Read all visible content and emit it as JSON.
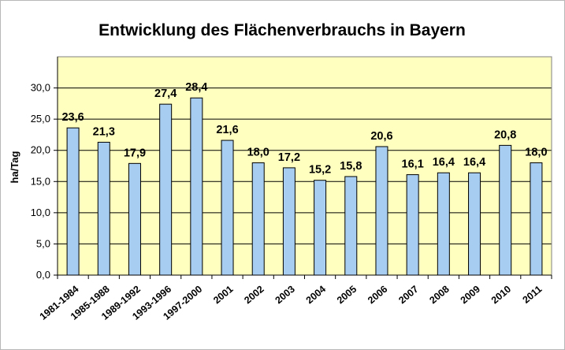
{
  "chart_data": {
    "type": "bar",
    "title": "Entwicklung des Flächenverbrauchs in Bayern",
    "ylabel": "ha/Tag",
    "xlabel": "",
    "categories": [
      "1981-1984",
      "1985-1988",
      "1989-1992",
      "1993-1996",
      "1997-2000",
      "2001",
      "2002",
      "2003",
      "2004",
      "2005",
      "2006",
      "2007",
      "2008",
      "2009",
      "2010",
      "2011"
    ],
    "values": [
      23.6,
      21.3,
      17.9,
      27.4,
      28.4,
      21.6,
      18.0,
      17.2,
      15.2,
      15.8,
      20.6,
      16.1,
      16.4,
      16.4,
      20.8,
      18.0
    ],
    "value_labels": [
      "23,6",
      "21,3",
      "17,9",
      "27,4",
      "28,4",
      "21,6",
      "18,0",
      "17,2",
      "15,2",
      "15,8",
      "20,6",
      "16,1",
      "16,4",
      "16,4",
      "20,8",
      "18,0"
    ],
    "ylim": [
      0,
      35
    ],
    "yticks": [
      0,
      5,
      10,
      15,
      20,
      25,
      30
    ],
    "ytick_labels": [
      "0,0",
      "5,0",
      "10,0",
      "15,0",
      "20,0",
      "25,0",
      "30,0"
    ],
    "grid": true,
    "legend": "none",
    "colors": {
      "plot_background": "#ffffc0",
      "bar_fill": "#a7cdf0",
      "bar_stroke": "#000000",
      "gridline": "#000000",
      "frame": "#b8b8b8"
    }
  }
}
